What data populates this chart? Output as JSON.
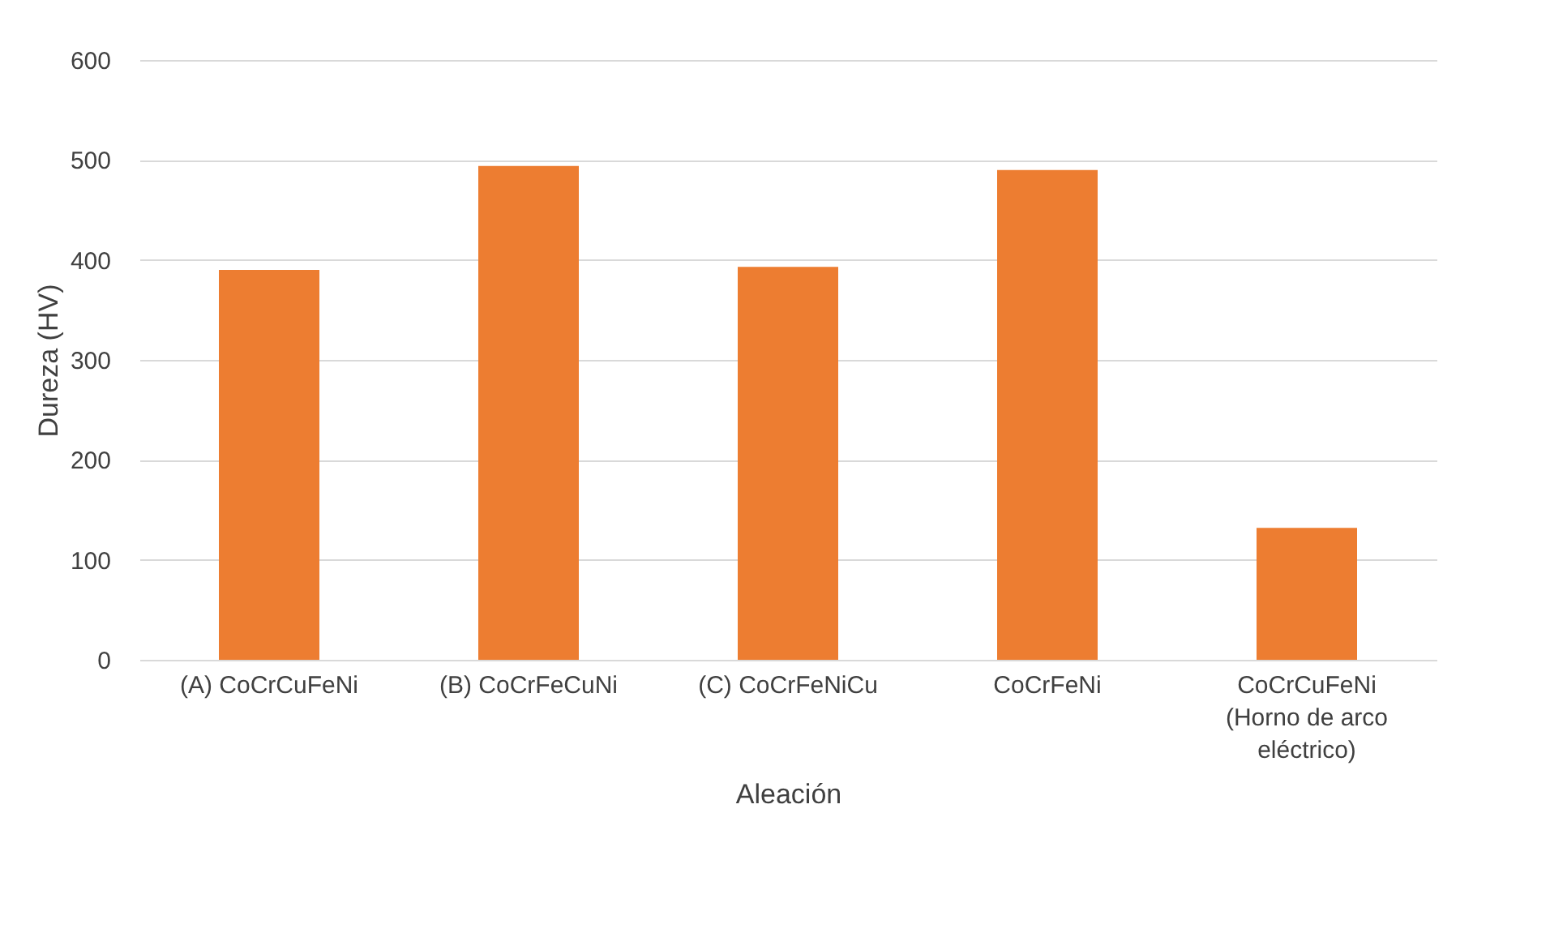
{
  "chart_data": {
    "type": "bar",
    "xlabel": "Aleación",
    "ylabel": "Dureza  (HV)",
    "categories": [
      "(A) CoCrCuFeNi",
      "(B) CoCrFeCuNi",
      "(C) CoCrFeNiCu",
      "CoCrFeNi",
      "CoCrCuFeNi\n(Horno de arco\neléctrico)"
    ],
    "values": [
      390,
      494,
      393,
      490,
      132
    ],
    "color": "#ed7d31",
    "ylim": [
      0,
      600
    ],
    "yticks": [
      0,
      100,
      200,
      300,
      400,
      500,
      600
    ],
    "grid": "y"
  }
}
